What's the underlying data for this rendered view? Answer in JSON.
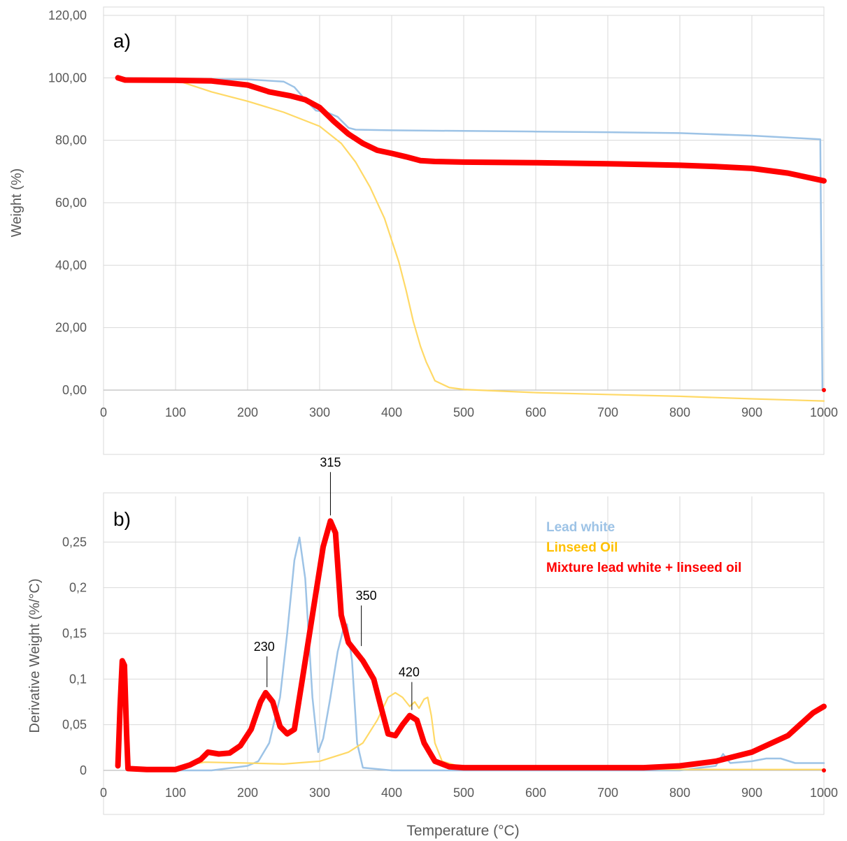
{
  "figure": {
    "xlabel": "Temperature (°C)"
  },
  "chart_data": [
    {
      "type": "line",
      "panel_label": "a)",
      "xlabel": "",
      "ylabel": "Weight (%)",
      "xlim": [
        0,
        1000
      ],
      "ylim": [
        0,
        120
      ],
      "x_ticks": [
        0,
        100,
        200,
        300,
        400,
        500,
        600,
        700,
        800,
        900,
        1000
      ],
      "y_ticks": [
        "0,00",
        "20,00",
        "40,00",
        "60,00",
        "80,00",
        "100,00",
        "120,00"
      ],
      "y_tick_values": [
        0,
        20,
        40,
        60,
        80,
        100,
        120
      ],
      "grid": true,
      "series": [
        {
          "color": "#9DC3E6",
          "points": [
            [
              20,
              100
            ],
            [
              100,
              99.6
            ],
            [
              200,
              99.5
            ],
            [
              250,
              98.8
            ],
            [
              265,
              97
            ],
            [
              280,
              93
            ],
            [
              295,
              89.5
            ],
            [
              310,
              89
            ],
            [
              325,
              87.5
            ],
            [
              340,
              84
            ],
            [
              350,
              83.4
            ],
            [
              400,
              83.2
            ],
            [
              500,
              83
            ],
            [
              600,
              82.8
            ],
            [
              700,
              82.6
            ],
            [
              800,
              82.3
            ],
            [
              900,
              81.5
            ],
            [
              995,
              80.3
            ],
            [
              998,
              0
            ]
          ]
        },
        {
          "color": "#FFD966",
          "points": [
            [
              20,
              100
            ],
            [
              100,
              99.3
            ],
            [
              150,
              95.5
            ],
            [
              200,
              92.5
            ],
            [
              250,
              89
            ],
            [
              300,
              84.5
            ],
            [
              330,
              79
            ],
            [
              350,
              73
            ],
            [
              370,
              65
            ],
            [
              390,
              55
            ],
            [
              400,
              48
            ],
            [
              410,
              41
            ],
            [
              420,
              32
            ],
            [
              430,
              22
            ],
            [
              440,
              14
            ],
            [
              448,
              9
            ],
            [
              452,
              7
            ],
            [
              460,
              3
            ],
            [
              480,
              0.8
            ],
            [
              500,
              0.2
            ],
            [
              600,
              -0.8
            ],
            [
              700,
              -1.4
            ],
            [
              800,
              -2
            ],
            [
              900,
              -2.8
            ],
            [
              1000,
              -3.5
            ]
          ]
        },
        {
          "color": "#FF0000",
          "points": [
            [
              20,
              100
            ],
            [
              30,
              99.3
            ],
            [
              100,
              99.2
            ],
            [
              150,
              99
            ],
            [
              200,
              97.7
            ],
            [
              230,
              95.5
            ],
            [
              260,
              94.2
            ],
            [
              280,
              93
            ],
            [
              300,
              90.5
            ],
            [
              320,
              86
            ],
            [
              340,
              82
            ],
            [
              360,
              79
            ],
            [
              380,
              76.8
            ],
            [
              400,
              75.8
            ],
            [
              420,
              74.7
            ],
            [
              440,
              73.5
            ],
            [
              460,
              73.2
            ],
            [
              500,
              73
            ],
            [
              600,
              72.8
            ],
            [
              700,
              72.5
            ],
            [
              800,
              72
            ],
            [
              850,
              71.6
            ],
            [
              900,
              71
            ],
            [
              950,
              69.5
            ],
            [
              1000,
              67
            ]
          ]
        }
      ]
    },
    {
      "type": "line",
      "panel_label": "b)",
      "xlabel": "Temperature (°C)",
      "ylabel": "Derivative Weight (%/°C)",
      "xlim": [
        0,
        1000
      ],
      "ylim": [
        0,
        0.3
      ],
      "x_ticks": [
        0,
        100,
        200,
        300,
        400,
        500,
        600,
        700,
        800,
        900,
        1000
      ],
      "y_ticks": [
        "0",
        "0,05",
        "0,1",
        "0,15",
        "0,2",
        "0,25"
      ],
      "y_tick_values": [
        0,
        0.05,
        0.1,
        0.15,
        0.2,
        0.25
      ],
      "grid": true,
      "legend_position": "top-right",
      "legend": [
        {
          "label": "Lead white",
          "color": "#9DC3E6"
        },
        {
          "label": "Linseed Oil",
          "color": "#FFD966"
        },
        {
          "label": "Mixture lead white + linseed oil",
          "color": "#FF0000"
        }
      ],
      "annotations": [
        {
          "text": "230",
          "x": 225,
          "y": 0.085
        },
        {
          "text": "315",
          "x": 315,
          "y": 0.273
        },
        {
          "text": "350",
          "x": 355,
          "y": 0.13
        },
        {
          "text": "420",
          "x": 428,
          "y": 0.06
        }
      ],
      "series": [
        {
          "color": "#9DC3E6",
          "points": [
            [
              100,
              0
            ],
            [
              150,
              0
            ],
            [
              200,
              0.005
            ],
            [
              215,
              0.01
            ],
            [
              230,
              0.03
            ],
            [
              245,
              0.08
            ],
            [
              255,
              0.15
            ],
            [
              265,
              0.23
            ],
            [
              272,
              0.255
            ],
            [
              280,
              0.21
            ],
            [
              290,
              0.08
            ],
            [
              298,
              0.02
            ],
            [
              305,
              0.035
            ],
            [
              315,
              0.08
            ],
            [
              325,
              0.13
            ],
            [
              333,
              0.155
            ],
            [
              338,
              0.16
            ],
            [
              345,
              0.12
            ],
            [
              352,
              0.03
            ],
            [
              360,
              0.003
            ],
            [
              400,
              0
            ],
            [
              500,
              0
            ],
            [
              600,
              0
            ],
            [
              700,
              0
            ],
            [
              800,
              0
            ],
            [
              850,
              0.005
            ],
            [
              860,
              0.018
            ],
            [
              870,
              0.008
            ],
            [
              900,
              0.01
            ],
            [
              920,
              0.013
            ],
            [
              940,
              0.013
            ],
            [
              960,
              0.008
            ],
            [
              1000,
              0.008
            ]
          ]
        },
        {
          "color": "#FFD966",
          "points": [
            [
              100,
              0.003
            ],
            [
              140,
              0.009
            ],
            [
              200,
              0.008
            ],
            [
              250,
              0.007
            ],
            [
              300,
              0.01
            ],
            [
              340,
              0.02
            ],
            [
              360,
              0.03
            ],
            [
              380,
              0.055
            ],
            [
              395,
              0.08
            ],
            [
              405,
              0.085
            ],
            [
              415,
              0.08
            ],
            [
              425,
              0.07
            ],
            [
              432,
              0.075
            ],
            [
              438,
              0.068
            ],
            [
              445,
              0.078
            ],
            [
              450,
              0.08
            ],
            [
              455,
              0.06
            ],
            [
              460,
              0.03
            ],
            [
              470,
              0.01
            ],
            [
              500,
              0.003
            ],
            [
              600,
              0.002
            ],
            [
              700,
              0.002
            ],
            [
              800,
              0.001
            ],
            [
              900,
              0.001
            ],
            [
              1000,
              0.001
            ]
          ]
        },
        {
          "color": "#FF0000",
          "points": [
            [
              20,
              0.005
            ],
            [
              23,
              0.07
            ],
            [
              26,
              0.12
            ],
            [
              29,
              0.115
            ],
            [
              32,
              0.04
            ],
            [
              34,
              0.002
            ],
            [
              60,
              0.001
            ],
            [
              100,
              0.001
            ],
            [
              120,
              0.006
            ],
            [
              135,
              0.012
            ],
            [
              145,
              0.02
            ],
            [
              160,
              0.018
            ],
            [
              175,
              0.019
            ],
            [
              190,
              0.027
            ],
            [
              205,
              0.045
            ],
            [
              218,
              0.075
            ],
            [
              225,
              0.085
            ],
            [
              235,
              0.075
            ],
            [
              245,
              0.048
            ],
            [
              255,
              0.04
            ],
            [
              265,
              0.045
            ],
            [
              275,
              0.095
            ],
            [
              290,
              0.17
            ],
            [
              305,
              0.245
            ],
            [
              315,
              0.273
            ],
            [
              322,
              0.26
            ],
            [
              330,
              0.17
            ],
            [
              340,
              0.14
            ],
            [
              350,
              0.13
            ],
            [
              360,
              0.12
            ],
            [
              375,
              0.1
            ],
            [
              385,
              0.07
            ],
            [
              395,
              0.04
            ],
            [
              405,
              0.038
            ],
            [
              415,
              0.05
            ],
            [
              425,
              0.06
            ],
            [
              435,
              0.055
            ],
            [
              445,
              0.03
            ],
            [
              460,
              0.01
            ],
            [
              480,
              0.004
            ],
            [
              500,
              0.003
            ],
            [
              600,
              0.003
            ],
            [
              700,
              0.003
            ],
            [
              750,
              0.003
            ],
            [
              800,
              0.005
            ],
            [
              850,
              0.01
            ],
            [
              900,
              0.02
            ],
            [
              950,
              0.038
            ],
            [
              985,
              0.063
            ],
            [
              1000,
              0.07
            ]
          ]
        }
      ]
    }
  ]
}
